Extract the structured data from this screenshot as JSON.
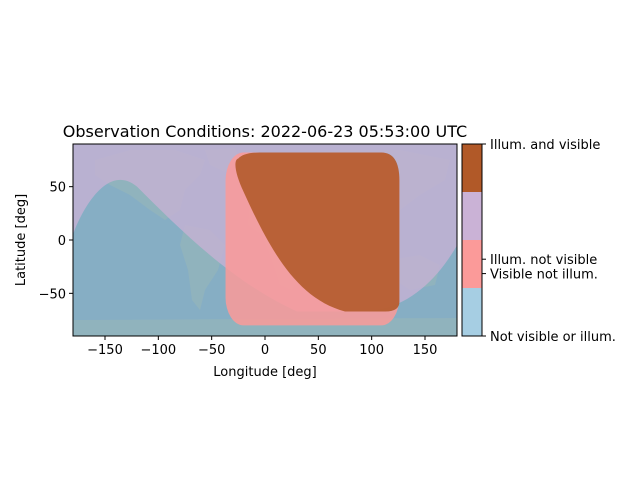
{
  "chart_data": {
    "type": "heatmap",
    "title": "Observation Conditions: 2022-06-23 05:53:00 UTC",
    "xlabel": "Longitude [deg]",
    "ylabel": "Latitude [deg]",
    "xlim": [
      -180,
      180
    ],
    "ylim": [
      -90,
      90
    ],
    "xticks": [
      -150,
      -100,
      -50,
      0,
      50,
      100,
      150
    ],
    "yticks": [
      -50,
      0,
      50
    ],
    "xtick_labels": [
      "−150",
      "−100",
      "−50",
      "0",
      "50",
      "100",
      "150"
    ],
    "ytick_labels": [
      "−50",
      "0",
      "50"
    ],
    "grid": false,
    "background": "world map",
    "categories": [
      {
        "value": 0,
        "label": "Not visible or illum.",
        "color": "#a6cee3"
      },
      {
        "value": 1,
        "label": "Visible not illum.",
        "color": "#fb9a99"
      },
      {
        "value": 2,
        "label": "Illum. not visible",
        "color": "#cab2d6"
      },
      {
        "value": 3,
        "label": "Illum. and visible",
        "color": "#b15928"
      }
    ],
    "colorbar_position": "right",
    "regions": {
      "visible_lon_range": [
        -37,
        126
      ],
      "visible_lat_range": [
        -80,
        82
      ],
      "illuminated_lon_range": [
        -180,
        180
      ],
      "illuminated_lat_range": [
        -67,
        90
      ]
    }
  }
}
